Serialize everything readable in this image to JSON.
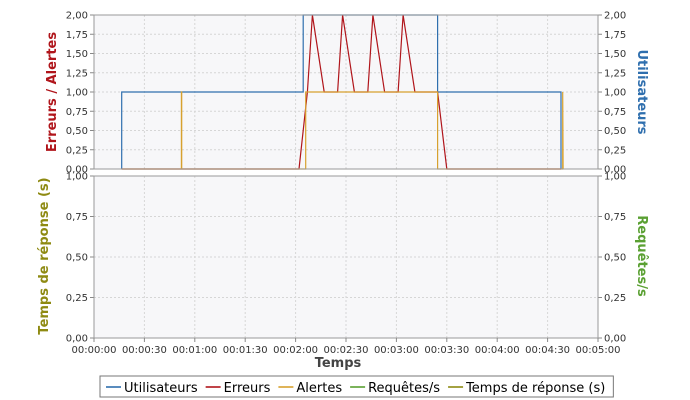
{
  "chart_data": {
    "type": "line",
    "xlabel": "Temps",
    "x_ticks": [
      "00:00:00",
      "00:00:30",
      "00:01:00",
      "00:01:30",
      "00:02:00",
      "00:02:30",
      "00:03:00",
      "00:03:30",
      "00:04:00",
      "00:04:30",
      "00:05:00"
    ],
    "xlim": [
      0,
      300
    ],
    "top_panel": {
      "left_label": "Erreurs / Alertes",
      "right_label": "Utilisateurs",
      "ylim": [
        0,
        2
      ],
      "y_ticks": [
        "0,00",
        "0,25",
        "0,50",
        "0,75",
        "1,00",
        "1,25",
        "1,50",
        "1,75",
        "2,00"
      ],
      "series": [
        {
          "name": "Utilisateurs",
          "color": "#2f6fae",
          "step": true,
          "x": [
            16.5,
            16.5,
            124.5,
            124.5,
            204.5,
            204.5,
            278,
            278
          ],
          "y": [
            0,
            1,
            1,
            2,
            2,
            1,
            1,
            0
          ]
        },
        {
          "name": "Erreurs",
          "color": "#b0151b",
          "step": false,
          "x": [
            16.5,
            122,
            127,
            130,
            137,
            145,
            148,
            155,
            163,
            166,
            173,
            181,
            184,
            191,
            199,
            204.5,
            210,
            278
          ],
          "y": [
            0,
            0,
            1,
            2,
            1,
            1,
            2,
            1,
            1,
            2,
            1,
            1,
            2,
            1,
            1,
            1,
            0,
            0
          ]
        },
        {
          "name": "Alertes",
          "color": "#d7a12f",
          "step": true,
          "x": [
            16.5,
            52,
            52,
            52.2,
            52.2,
            126,
            126,
            204.5,
            204.5,
            279,
            279,
            279.2
          ],
          "y": [
            0,
            0,
            1,
            1,
            0,
            0,
            1,
            1,
            0,
            0,
            1,
            0
          ]
        }
      ]
    },
    "bottom_panel": {
      "left_label": "Temps de réponse (s)",
      "right_label": "Requêtes/s",
      "ylim": [
        0,
        1
      ],
      "y_ticks": [
        "0,00",
        "0,25",
        "0,50",
        "0,75",
        "1,00"
      ],
      "series": []
    },
    "legend": [
      {
        "name": "Utilisateurs",
        "color": "#2f6fae"
      },
      {
        "name": "Erreurs",
        "color": "#b0151b"
      },
      {
        "name": "Alertes",
        "color": "#d7a12f"
      },
      {
        "name": "Requêtes/s",
        "color": "#5aa032"
      },
      {
        "name": "Temps de réponse (s)",
        "color": "#8e8a12"
      }
    ],
    "label_colors": {
      "errors": "#b0151b",
      "users": "#2f6fae",
      "response": "#8e8a12",
      "requests": "#5aa032"
    },
    "grid": true,
    "legend_position": "bottom"
  }
}
